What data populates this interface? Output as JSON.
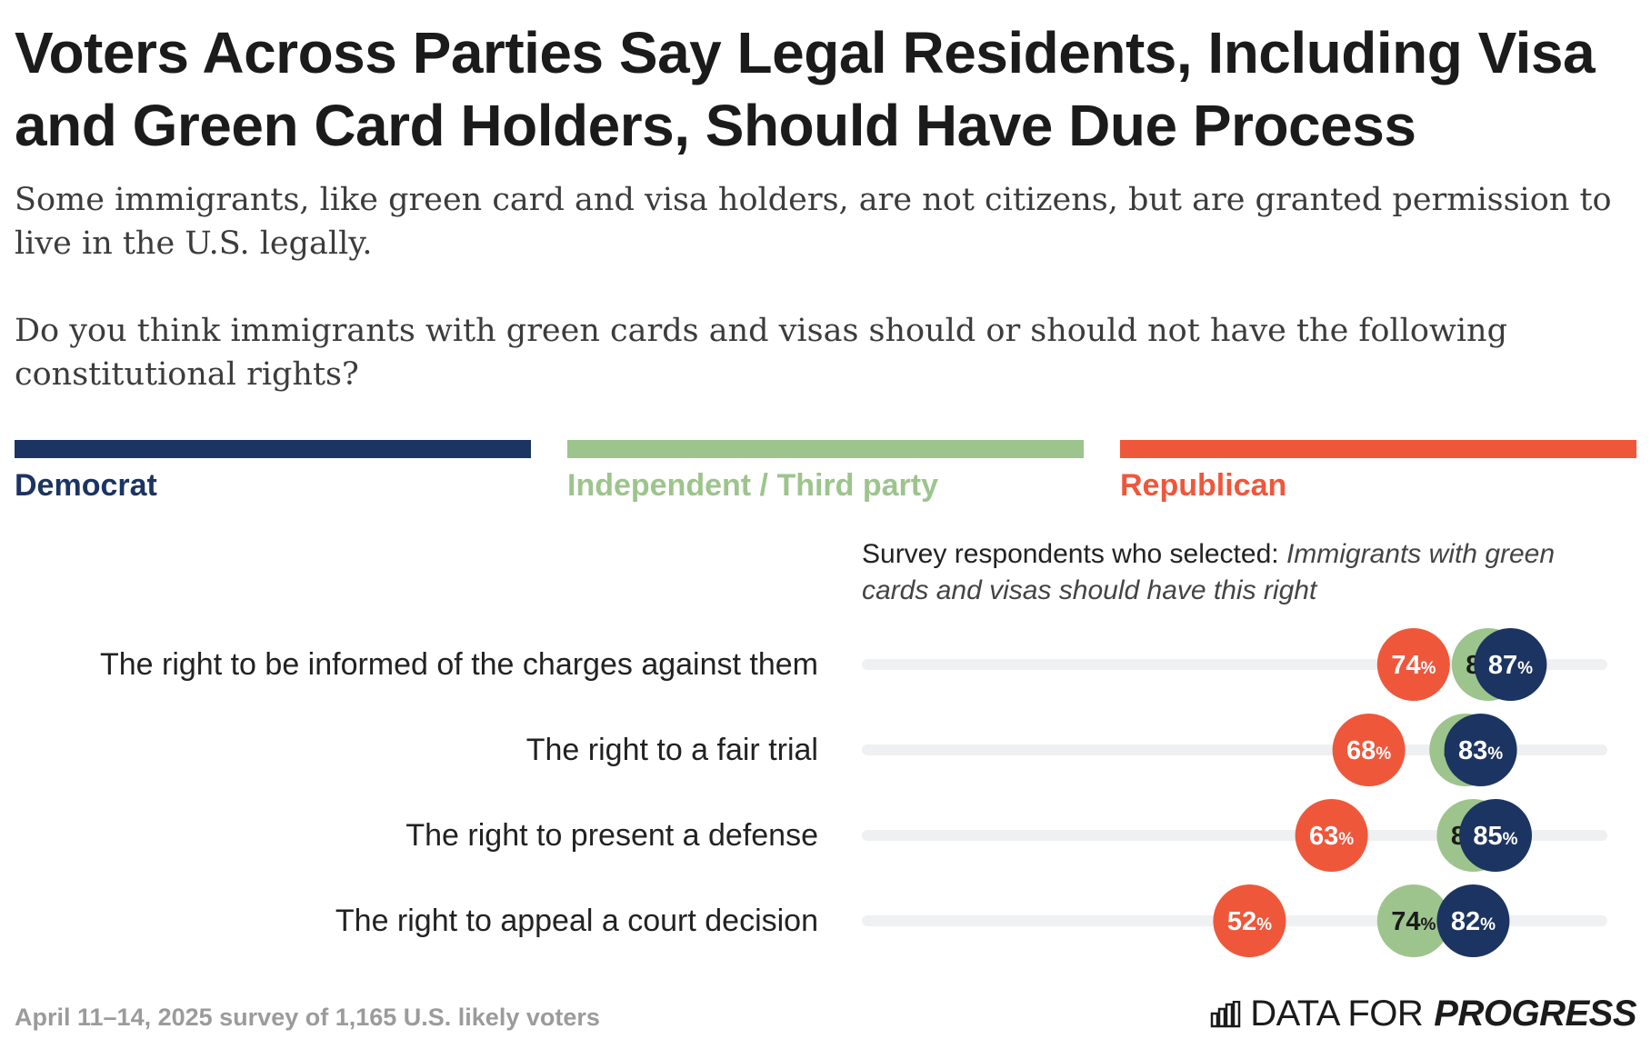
{
  "header": {
    "title_line1": "Voters Across Parties Say Legal Residents, Including Visa",
    "title_line2": "and Green Card Holders, Should Have Due Process",
    "subtitle_p1": "Some immigrants, like green card and visa holders, are not citizens, but are granted permission to live in the U.S. legally.",
    "subtitle_p2": "Do you think immigrants with green cards and visas should or should not have the following constitutional rights?"
  },
  "legend": [
    {
      "label": "Democrat",
      "color": "#1c3461"
    },
    {
      "label": "Independent / Third party",
      "color": "#9dc48d"
    },
    {
      "label": "Republican",
      "color": "#ef573b"
    }
  ],
  "axis_caption": {
    "prefix": "Survey respondents who selected: ",
    "emphasis": "Immigrants with green cards and visas should have this right"
  },
  "chart_data": {
    "type": "dot",
    "xlim": [
      0,
      100
    ],
    "categories": [
      "The right to be informed of the charges against them",
      "The right to a fair trial",
      "The right to present a defense",
      "The right to appeal a court decision"
    ],
    "series": [
      {
        "name": "Republican",
        "color": "#ef573b",
        "values": [
          74,
          68,
          63,
          52
        ]
      },
      {
        "name": "Independent / Third party",
        "color": "#9dc48d",
        "values": [
          84,
          81,
          82,
          74
        ]
      },
      {
        "name": "Democrat",
        "color": "#1c3461",
        "values": [
          87,
          83,
          85,
          82
        ]
      }
    ],
    "value_suffix": "%"
  },
  "footer": {
    "note": "April 11–14, 2025 survey of 1,165 U.S. likely voters",
    "brand_main": "DATA FOR",
    "brand_bold": "PROGRESS",
    "brand_icon": "bar-chart-icon"
  }
}
